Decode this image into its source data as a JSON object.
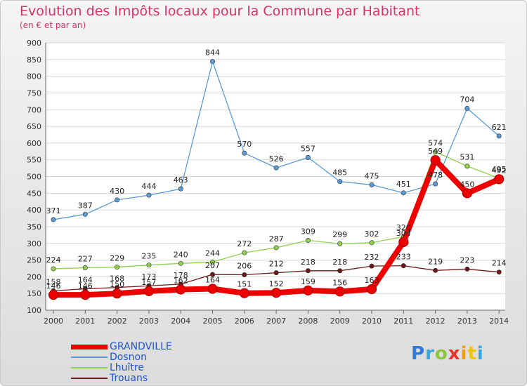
{
  "header": {
    "title": "Evolution des Impôts locaux pour la Commune par Habitant",
    "subtitle": "(en € et par an)"
  },
  "logo": {
    "text": "Proxiti"
  },
  "colors": {
    "GRANDVILLE": "#ee0000",
    "Dosnon": "#5b9bd5",
    "Lhuître": "#8fd14f",
    "Trouans": "#6b1a1a",
    "title": "#d6336c",
    "legend_text": "#2255cc"
  },
  "chart_data": {
    "type": "line",
    "title": "Evolution des Impôts locaux pour la Commune par Habitant",
    "subtitle": "(en € et par an)",
    "xlabel": "",
    "ylabel": "",
    "categories": [
      "2000",
      "2001",
      "2002",
      "2003",
      "2004",
      "2005",
      "2006",
      "2007",
      "2008",
      "2009",
      "2010",
      "2011",
      "2012",
      "2013",
      "2014"
    ],
    "ylim": [
      100,
      900
    ],
    "yticks": [
      100,
      150,
      200,
      250,
      300,
      350,
      400,
      450,
      500,
      550,
      600,
      650,
      700,
      750,
      800,
      850,
      900
    ],
    "grid": "horizontal",
    "legend_position": "bottom-left",
    "series": [
      {
        "name": "GRANDVILLE",
        "values": [
          146,
          146,
          150,
          157,
          162,
          164,
          151,
          152,
          159,
          156,
          163,
          304,
          549,
          450,
          492
        ]
      },
      {
        "name": "Dosnon",
        "values": [
          371,
          387,
          430,
          444,
          463,
          844,
          570,
          526,
          557,
          485,
          475,
          451,
          478,
          704,
          621
        ]
      },
      {
        "name": "Lhuître",
        "values": [
          224,
          227,
          229,
          235,
          240,
          244,
          272,
          287,
          309,
          299,
          302,
          320,
          574,
          531,
          495
        ]
      },
      {
        "name": "Trouans",
        "values": [
          158,
          164,
          168,
          173,
          178,
          207,
          206,
          212,
          218,
          218,
          232,
          233,
          219,
          223,
          214
        ]
      }
    ]
  }
}
